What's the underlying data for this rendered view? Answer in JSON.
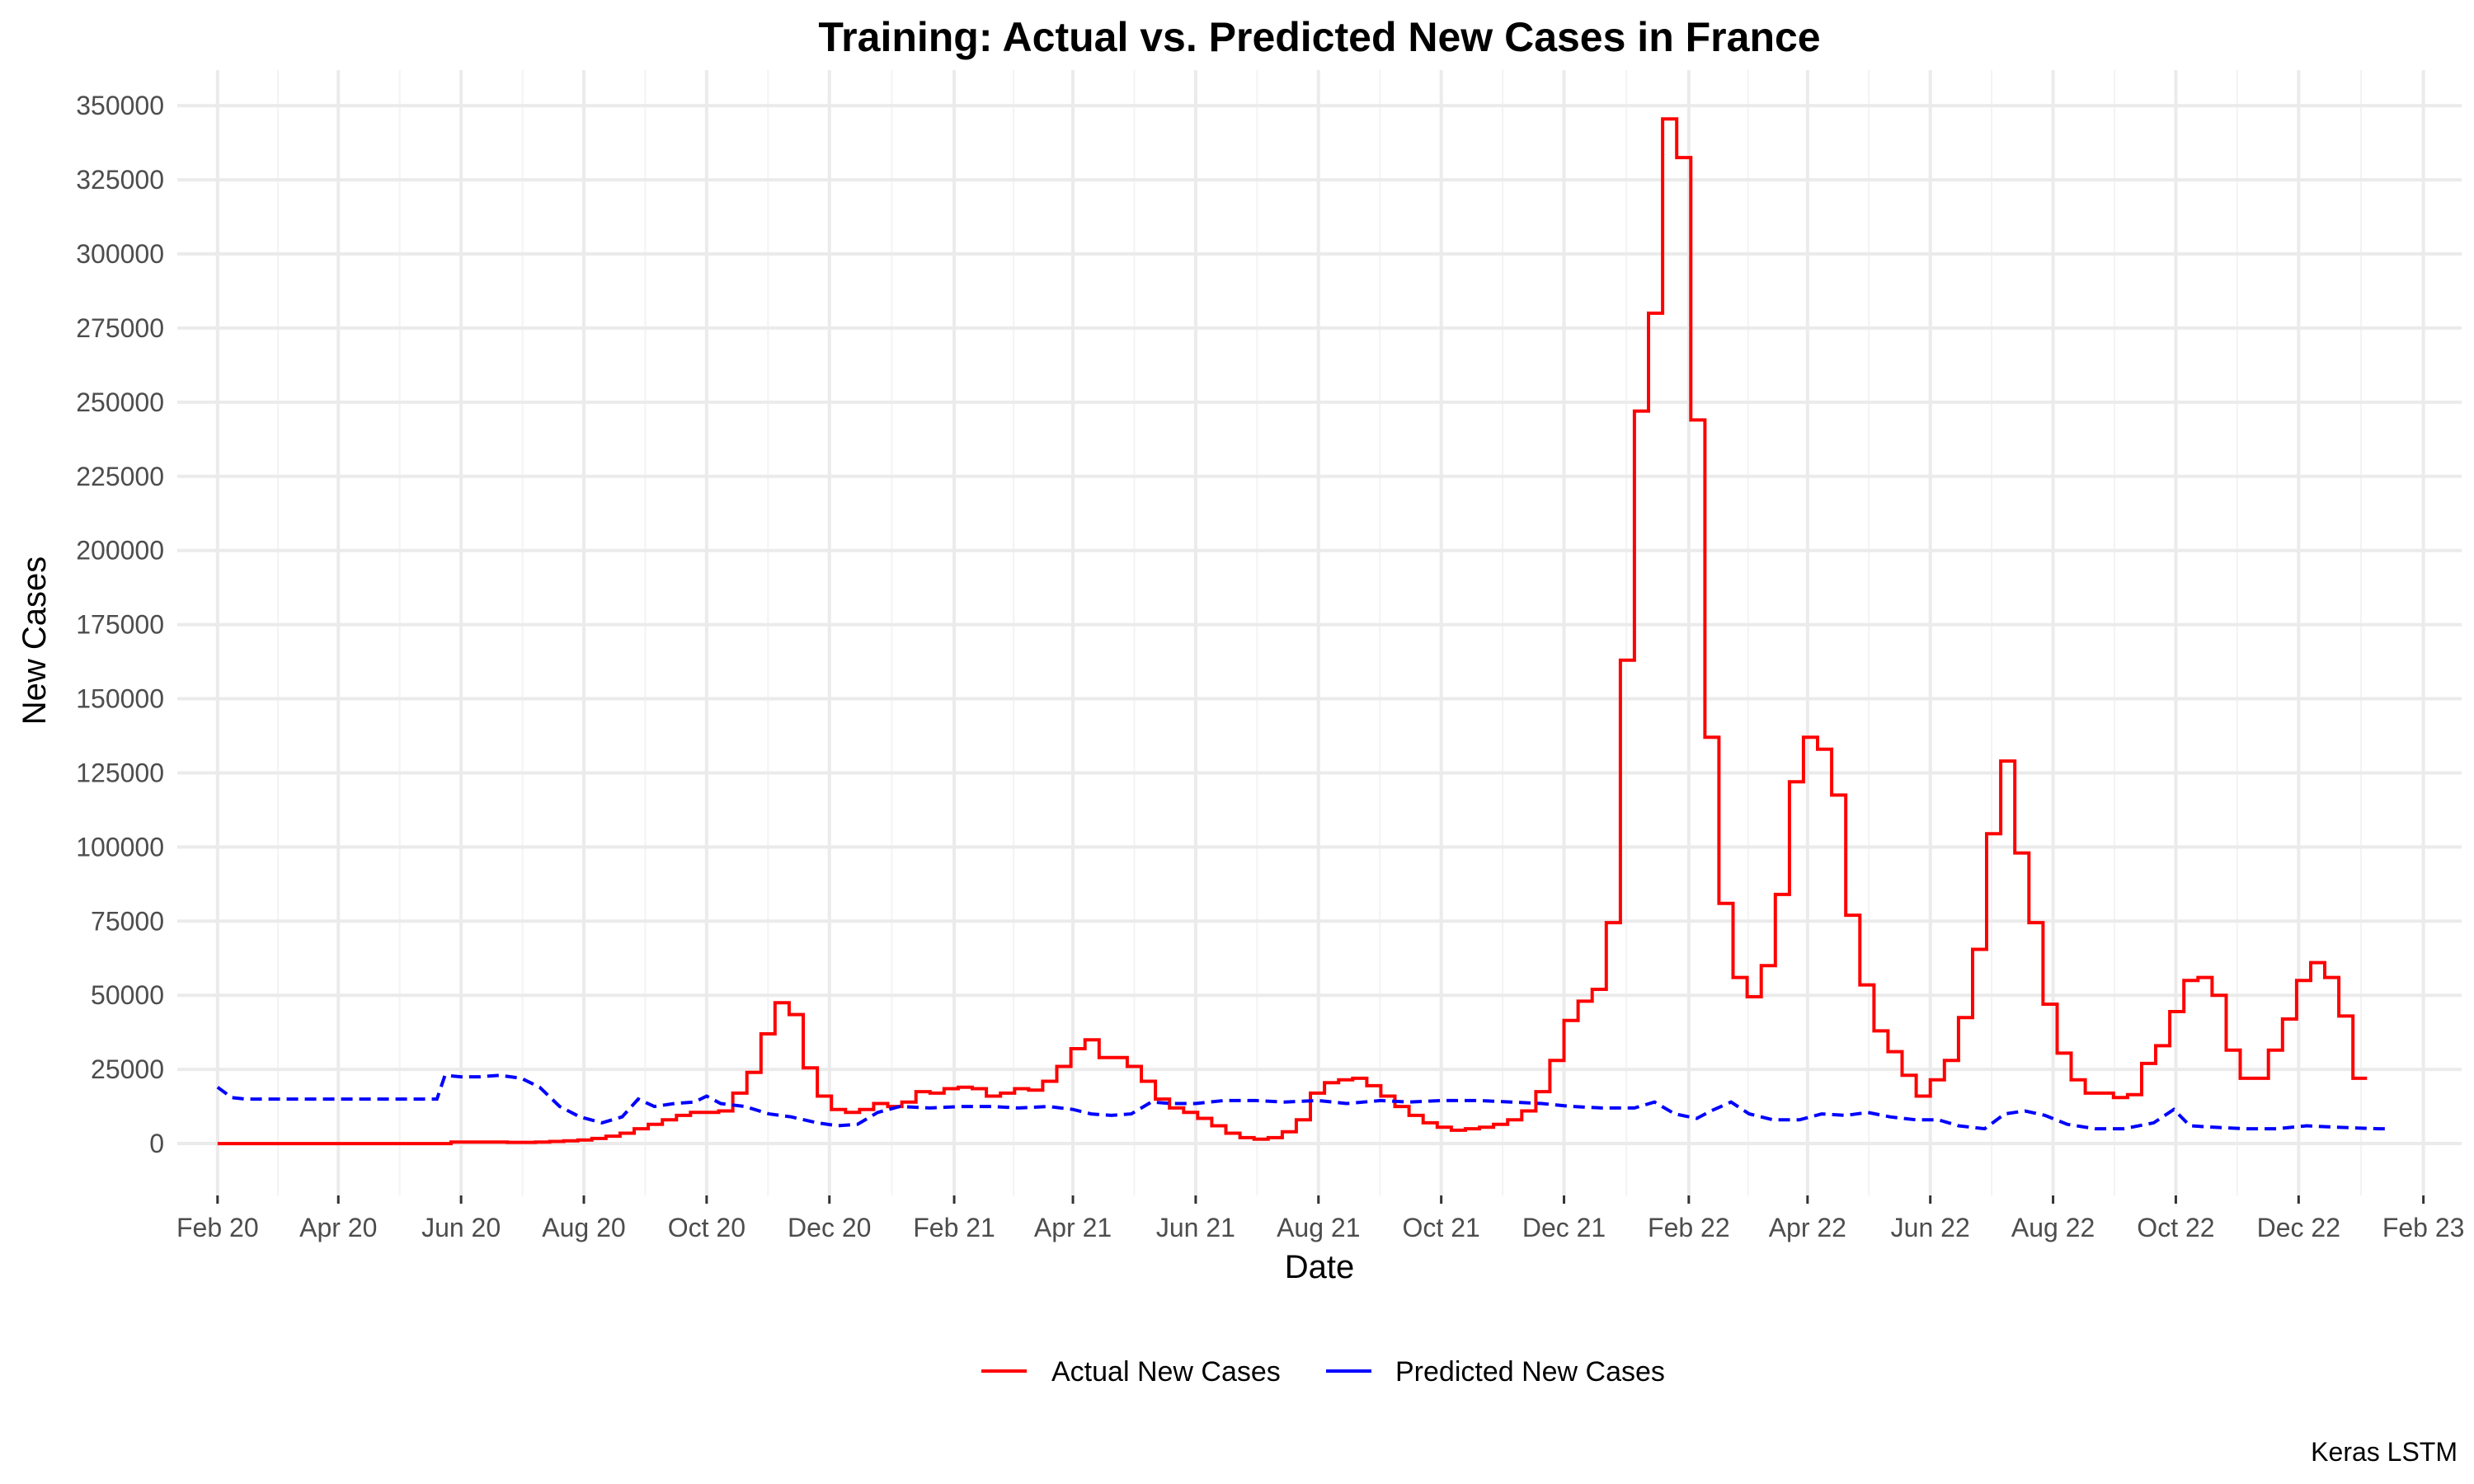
{
  "chart_data": {
    "type": "line",
    "title": "Training: Actual vs. Predicted New Cases in France",
    "xlabel": "Date",
    "ylabel": "New Cases",
    "caption": "Keras LSTM",
    "x_ticks": [
      "2020-02-01",
      "2020-04-01",
      "2020-06-01",
      "2020-08-01",
      "2020-10-01",
      "2020-12-01",
      "2021-02-01",
      "2021-04-01",
      "2021-06-01",
      "2021-08-01",
      "2021-10-01",
      "2021-12-01",
      "2022-02-01",
      "2022-04-01",
      "2022-06-01",
      "2022-08-01",
      "2022-10-01",
      "2022-12-01",
      "2023-02-01"
    ],
    "x_tick_labels": [
      "Feb 20",
      "Apr 20",
      "Jun 20",
      "Aug 20",
      "Oct 20",
      "Dec 20",
      "Feb 21",
      "Apr 21",
      "Jun 21",
      "Aug 21",
      "Oct 21",
      "Dec 21",
      "Feb 22",
      "Apr 22",
      "Jun 22",
      "Aug 22",
      "Oct 22",
      "Dec 22",
      "Feb 23"
    ],
    "xlim": [
      "2020-01-12",
      "2023-02-20"
    ],
    "y_ticks": [
      0,
      25000,
      50000,
      75000,
      100000,
      125000,
      150000,
      175000,
      200000,
      225000,
      250000,
      275000,
      300000,
      325000,
      350000
    ],
    "y_tick_labels": [
      "0",
      "25000",
      "50000",
      "75000",
      "100000",
      "125000",
      "150000",
      "175000",
      "200000",
      "225000",
      "250000",
      "275000",
      "300000",
      "325000",
      "350000"
    ],
    "ylim": [
      -17500,
      362000
    ],
    "legend_position": "bottom",
    "grid": true,
    "series": [
      {
        "name": "Actual New Cases",
        "color": "#ff0000",
        "dash": "solid",
        "step": true,
        "points": [
          [
            "2020-02-01",
            0
          ],
          [
            "2020-05-20",
            0
          ],
          [
            "2020-05-27",
            500
          ],
          [
            "2020-06-24",
            400
          ],
          [
            "2020-07-08",
            500
          ],
          [
            "2020-07-15",
            700
          ],
          [
            "2020-07-22",
            900
          ],
          [
            "2020-07-29",
            1200
          ],
          [
            "2020-08-05",
            1700
          ],
          [
            "2020-08-12",
            2500
          ],
          [
            "2020-08-19",
            3500
          ],
          [
            "2020-08-26",
            5000
          ],
          [
            "2020-09-02",
            6500
          ],
          [
            "2020-09-09",
            8000
          ],
          [
            "2020-09-16",
            9500
          ],
          [
            "2020-09-23",
            10500
          ],
          [
            "2020-09-30",
            10500
          ],
          [
            "2020-10-07",
            11000
          ],
          [
            "2020-10-14",
            17000
          ],
          [
            "2020-10-21",
            24000
          ],
          [
            "2020-10-28",
            37000
          ],
          [
            "2020-11-04",
            47500
          ],
          [
            "2020-11-11",
            43500
          ],
          [
            "2020-11-18",
            25500
          ],
          [
            "2020-11-25",
            16000
          ],
          [
            "2020-12-02",
            11500
          ],
          [
            "2020-12-09",
            10500
          ],
          [
            "2020-12-16",
            11500
          ],
          [
            "2020-12-23",
            13500
          ],
          [
            "2020-12-30",
            12500
          ],
          [
            "2021-01-06",
            14000
          ],
          [
            "2021-01-13",
            17500
          ],
          [
            "2021-01-20",
            17000
          ],
          [
            "2021-01-27",
            18500
          ],
          [
            "2021-02-03",
            19000
          ],
          [
            "2021-02-10",
            18500
          ],
          [
            "2021-02-17",
            16000
          ],
          [
            "2021-02-24",
            17000
          ],
          [
            "2021-03-03",
            18500
          ],
          [
            "2021-03-10",
            18000
          ],
          [
            "2021-03-17",
            21000
          ],
          [
            "2021-03-24",
            26000
          ],
          [
            "2021-03-31",
            32000
          ],
          [
            "2021-04-07",
            35000
          ],
          [
            "2021-04-14",
            29000
          ],
          [
            "2021-04-28",
            26000
          ],
          [
            "2021-05-05",
            21000
          ],
          [
            "2021-05-12",
            15000
          ],
          [
            "2021-05-19",
            12000
          ],
          [
            "2021-05-26",
            10500
          ],
          [
            "2021-06-02",
            8500
          ],
          [
            "2021-06-09",
            6000
          ],
          [
            "2021-06-16",
            3500
          ],
          [
            "2021-06-23",
            2000
          ],
          [
            "2021-06-30",
            1500
          ],
          [
            "2021-07-07",
            2000
          ],
          [
            "2021-07-14",
            4000
          ],
          [
            "2021-07-21",
            8000
          ],
          [
            "2021-07-28",
            17000
          ],
          [
            "2021-08-04",
            20500
          ],
          [
            "2021-08-11",
            21500
          ],
          [
            "2021-08-18",
            22000
          ],
          [
            "2021-08-25",
            19500
          ],
          [
            "2021-09-01",
            16000
          ],
          [
            "2021-09-08",
            12500
          ],
          [
            "2021-09-15",
            9500
          ],
          [
            "2021-09-22",
            7000
          ],
          [
            "2021-09-29",
            5500
          ],
          [
            "2021-10-06",
            4500
          ],
          [
            "2021-10-13",
            5000
          ],
          [
            "2021-10-20",
            5500
          ],
          [
            "2021-10-27",
            6500
          ],
          [
            "2021-11-03",
            8000
          ],
          [
            "2021-11-10",
            11000
          ],
          [
            "2021-11-17",
            17500
          ],
          [
            "2021-11-24",
            28000
          ],
          [
            "2021-12-01",
            41500
          ],
          [
            "2021-12-08",
            48000
          ],
          [
            "2021-12-15",
            52000
          ],
          [
            "2021-12-22",
            74500
          ],
          [
            "2021-12-29",
            163000
          ],
          [
            "2022-01-05",
            247000
          ],
          [
            "2022-01-12",
            280000
          ],
          [
            "2022-01-19",
            345500
          ],
          [
            "2022-01-26",
            332500
          ],
          [
            "2022-02-02",
            244000
          ],
          [
            "2022-02-09",
            137000
          ],
          [
            "2022-02-16",
            81000
          ],
          [
            "2022-02-23",
            56000
          ],
          [
            "2022-03-02",
            49500
          ],
          [
            "2022-03-09",
            60000
          ],
          [
            "2022-03-16",
            84000
          ],
          [
            "2022-03-23",
            122000
          ],
          [
            "2022-03-30",
            137000
          ],
          [
            "2022-04-06",
            133000
          ],
          [
            "2022-04-13",
            117500
          ],
          [
            "2022-04-20",
            77000
          ],
          [
            "2022-04-27",
            53500
          ],
          [
            "2022-05-04",
            38000
          ],
          [
            "2022-05-11",
            31000
          ],
          [
            "2022-05-18",
            23000
          ],
          [
            "2022-05-25",
            16000
          ],
          [
            "2022-06-01",
            21500
          ],
          [
            "2022-06-08",
            28000
          ],
          [
            "2022-06-15",
            42500
          ],
          [
            "2022-06-22",
            65500
          ],
          [
            "2022-06-29",
            104500
          ],
          [
            "2022-07-06",
            129000
          ],
          [
            "2022-07-13",
            98000
          ],
          [
            "2022-07-20",
            74500
          ],
          [
            "2022-07-27",
            47000
          ],
          [
            "2022-08-03",
            30500
          ],
          [
            "2022-08-10",
            21500
          ],
          [
            "2022-08-17",
            17000
          ],
          [
            "2022-08-31",
            15500
          ],
          [
            "2022-09-07",
            16500
          ],
          [
            "2022-09-14",
            27000
          ],
          [
            "2022-09-21",
            33000
          ],
          [
            "2022-09-28",
            44500
          ],
          [
            "2022-10-05",
            55000
          ],
          [
            "2022-10-12",
            56000
          ],
          [
            "2022-10-19",
            50000
          ],
          [
            "2022-10-26",
            31500
          ],
          [
            "2022-11-02",
            22000
          ],
          [
            "2022-11-16",
            31500
          ],
          [
            "2022-11-23",
            42000
          ],
          [
            "2022-11-30",
            55000
          ],
          [
            "2022-12-07",
            61000
          ],
          [
            "2022-12-14",
            56000
          ],
          [
            "2022-12-21",
            43000
          ],
          [
            "2022-12-28",
            22000
          ],
          [
            "2023-01-04",
            22000
          ]
        ]
      },
      {
        "name": "Predicted New Cases",
        "color": "#0000ff",
        "dash": "dashed",
        "step": false,
        "points": [
          [
            "2020-02-01",
            19000
          ],
          [
            "2020-02-08",
            15500
          ],
          [
            "2020-02-15",
            15000
          ],
          [
            "2020-05-20",
            15000
          ],
          [
            "2020-05-24",
            23000
          ],
          [
            "2020-06-01",
            22500
          ],
          [
            "2020-06-10",
            22500
          ],
          [
            "2020-06-20",
            23000
          ],
          [
            "2020-07-01",
            22000
          ],
          [
            "2020-07-10",
            19000
          ],
          [
            "2020-07-20",
            12500
          ],
          [
            "2020-07-30",
            9000
          ],
          [
            "2020-08-10",
            7000
          ],
          [
            "2020-08-20",
            9000
          ],
          [
            "2020-08-28",
            15000
          ],
          [
            "2020-09-05",
            12500
          ],
          [
            "2020-09-15",
            13500
          ],
          [
            "2020-09-25",
            14000
          ],
          [
            "2020-10-01",
            16000
          ],
          [
            "2020-10-08",
            13500
          ],
          [
            "2020-10-20",
            12500
          ],
          [
            "2020-11-01",
            10000
          ],
          [
            "2020-11-12",
            9000
          ],
          [
            "2020-11-25",
            7000
          ],
          [
            "2020-12-05",
            6000
          ],
          [
            "2020-12-15",
            6500
          ],
          [
            "2020-12-25",
            10500
          ],
          [
            "2021-01-05",
            12500
          ],
          [
            "2021-01-20",
            12000
          ],
          [
            "2021-02-05",
            12500
          ],
          [
            "2021-02-20",
            12500
          ],
          [
            "2021-03-05",
            12000
          ],
          [
            "2021-03-20",
            12500
          ],
          [
            "2021-04-01",
            11500
          ],
          [
            "2021-04-10",
            10000
          ],
          [
            "2021-04-20",
            9500
          ],
          [
            "2021-04-30",
            10000
          ],
          [
            "2021-05-10",
            14000
          ],
          [
            "2021-05-20",
            13500
          ],
          [
            "2021-06-01",
            13500
          ],
          [
            "2021-06-15",
            14500
          ],
          [
            "2021-07-01",
            14500
          ],
          [
            "2021-07-15",
            14000
          ],
          [
            "2021-08-01",
            14500
          ],
          [
            "2021-08-15",
            13500
          ],
          [
            "2021-09-01",
            14500
          ],
          [
            "2021-09-15",
            14000
          ],
          [
            "2021-10-01",
            14500
          ],
          [
            "2021-10-20",
            14500
          ],
          [
            "2021-11-05",
            14000
          ],
          [
            "2021-11-20",
            13500
          ],
          [
            "2021-12-05",
            12500
          ],
          [
            "2021-12-20",
            12000
          ],
          [
            "2022-01-05",
            12000
          ],
          [
            "2022-01-15",
            14000
          ],
          [
            "2022-01-25",
            10000
          ],
          [
            "2022-02-05",
            8500
          ],
          [
            "2022-02-12",
            11000
          ],
          [
            "2022-02-22",
            14000
          ],
          [
            "2022-03-03",
            10000
          ],
          [
            "2022-03-15",
            8000
          ],
          [
            "2022-03-28",
            8000
          ],
          [
            "2022-04-08",
            10000
          ],
          [
            "2022-04-20",
            9500
          ],
          [
            "2022-05-01",
            10500
          ],
          [
            "2022-05-12",
            9000
          ],
          [
            "2022-05-25",
            8000
          ],
          [
            "2022-06-05",
            8000
          ],
          [
            "2022-06-15",
            6000
          ],
          [
            "2022-06-28",
            5000
          ],
          [
            "2022-07-08",
            10000
          ],
          [
            "2022-07-18",
            11000
          ],
          [
            "2022-07-28",
            9500
          ],
          [
            "2022-08-08",
            6500
          ],
          [
            "2022-08-22",
            5000
          ],
          [
            "2022-09-05",
            5000
          ],
          [
            "2022-09-20",
            7000
          ],
          [
            "2022-09-30",
            11500
          ],
          [
            "2022-10-08",
            6000
          ],
          [
            "2022-10-20",
            5500
          ],
          [
            "2022-11-05",
            5000
          ],
          [
            "2022-11-20",
            5000
          ],
          [
            "2022-12-05",
            6000
          ],
          [
            "2022-12-20",
            5500
          ],
          [
            "2023-01-10",
            5000
          ],
          [
            "2023-01-15",
            5000
          ]
        ]
      }
    ]
  }
}
